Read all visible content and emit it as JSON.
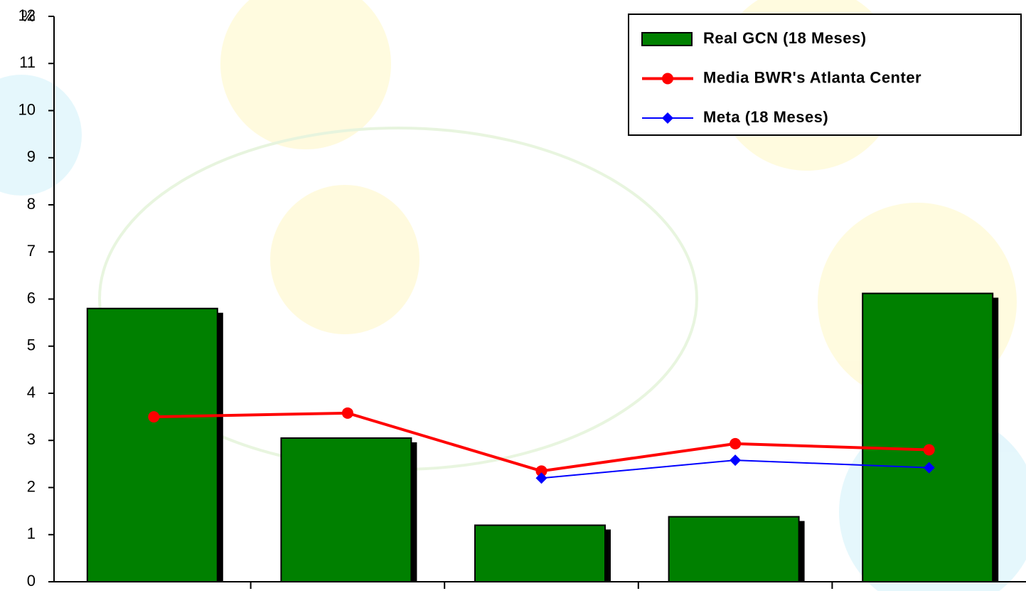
{
  "chart_data": {
    "type": "bar",
    "y_label": "%",
    "categories": [
      null,
      null,
      null,
      null,
      null
    ],
    "series": [
      {
        "name": "Real GCN (18 Meses)",
        "type": "bar",
        "color": "#008000",
        "values": [
          5.8,
          3.05,
          1.2,
          1.38,
          6.12
        ]
      },
      {
        "name": "Media BWR's Atlanta Center",
        "type": "line",
        "color": "#ff0000",
        "values": [
          3.5,
          3.58,
          2.35,
          2.93,
          2.8
        ]
      },
      {
        "name": "Meta (18 Meses)",
        "type": "line",
        "color": "#0000ff",
        "values": [
          null,
          null,
          2.2,
          2.58,
          2.42
        ]
      }
    ],
    "ylim": [
      0,
      12
    ],
    "yticks": [
      0,
      1,
      2,
      3,
      4,
      5,
      6,
      7,
      8,
      9,
      10,
      11,
      12
    ]
  }
}
